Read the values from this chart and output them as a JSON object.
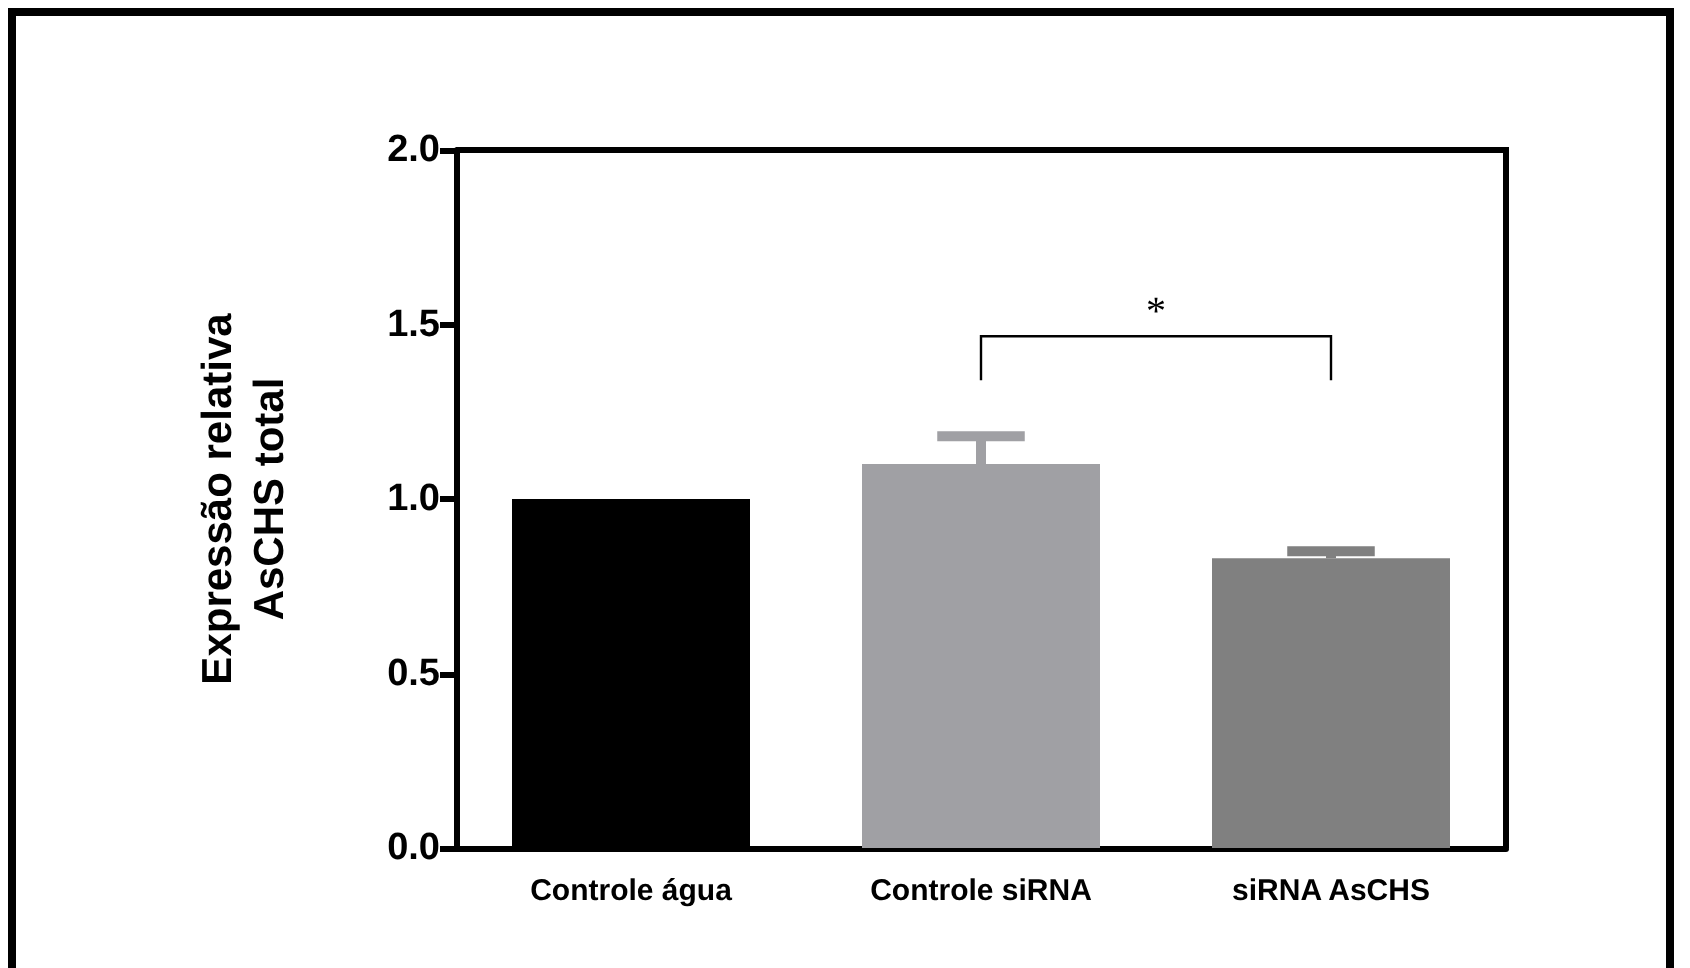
{
  "chart_data": {
    "type": "bar",
    "ylabel": "Expressão relativa\nAsCHS total",
    "categories": [
      "Controle água",
      "Controle siRNA",
      "siRNA AsCHS"
    ],
    "values": [
      1.0,
      1.1,
      0.83
    ],
    "colors": [
      "#000000",
      "#a0a0a4",
      "#808080"
    ],
    "errors": [
      null,
      [
        1.1,
        1.18
      ],
      [
        0.83,
        0.85
      ]
    ],
    "ylim": [
      0,
      2.0
    ],
    "yticks": [
      {
        "value": 0,
        "label": "0.0"
      },
      {
        "value": 0.5,
        "label": "0.5"
      },
      {
        "value": 1,
        "label": "1.0"
      },
      {
        "value": 1.5,
        "label": "1.5"
      },
      {
        "value": 2,
        "label": "2.0"
      }
    ],
    "grid": false,
    "annotations": [
      "*"
    ]
  }
}
